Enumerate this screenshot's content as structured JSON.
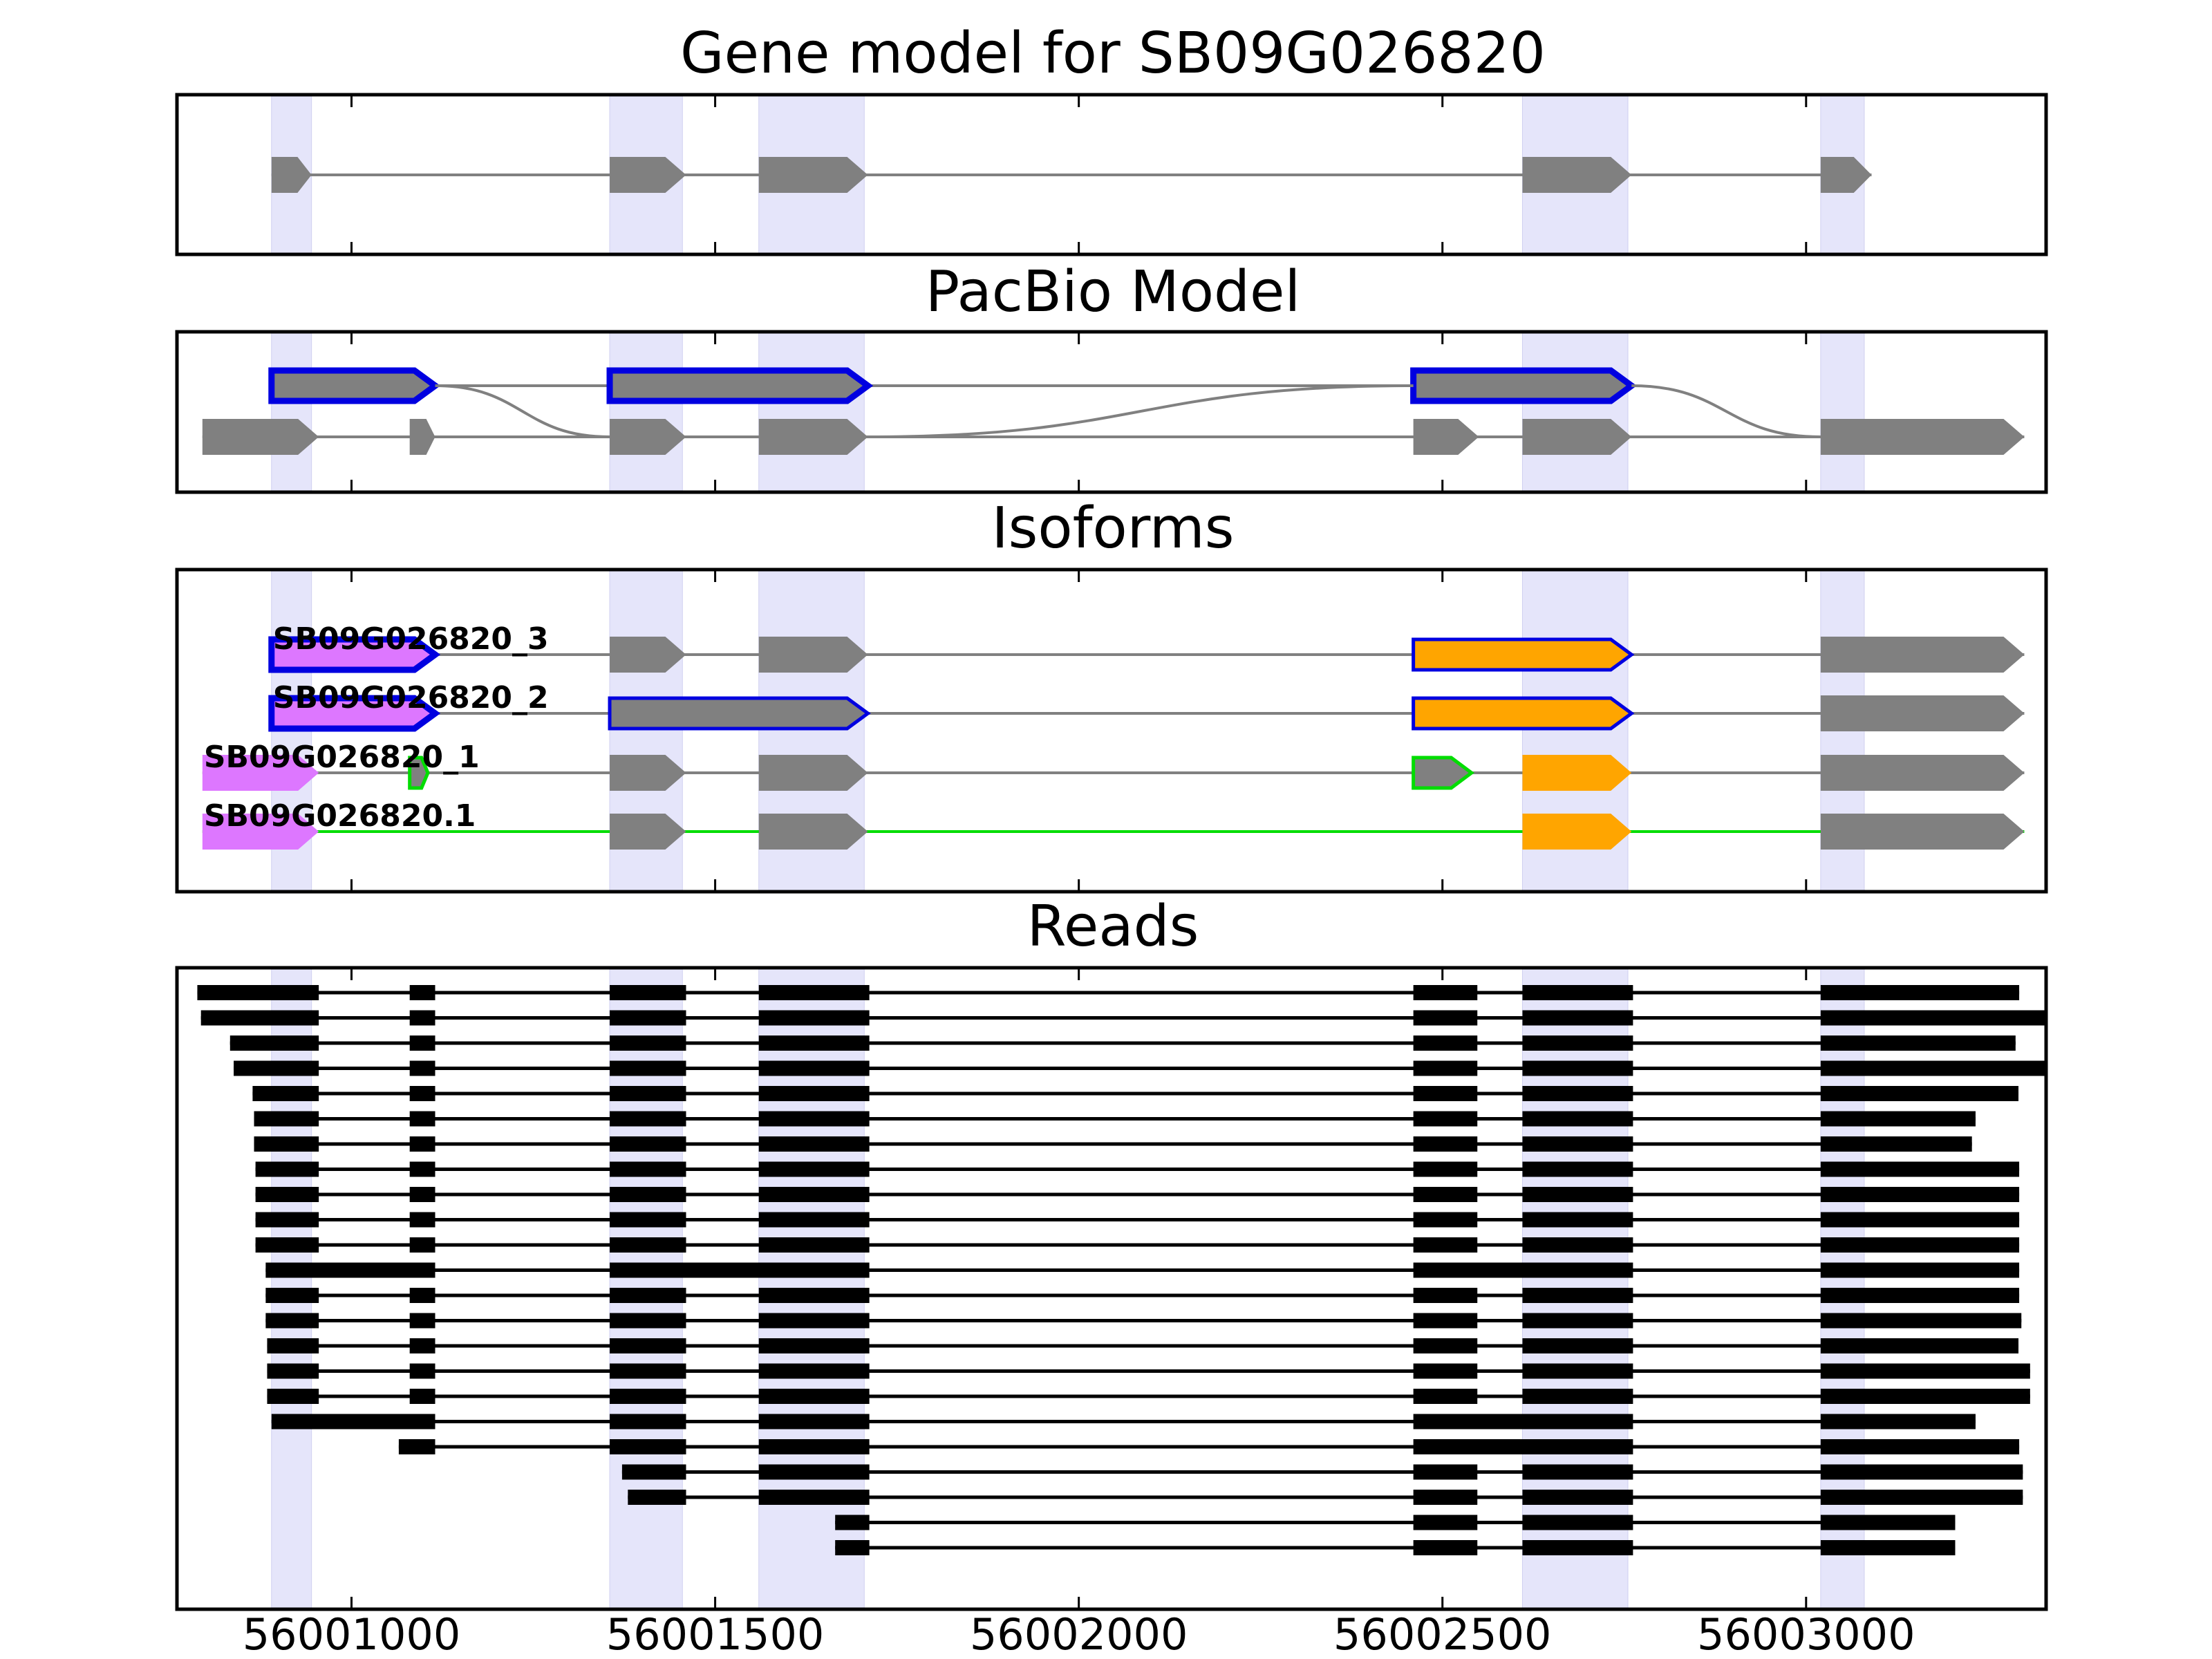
{
  "chart_data": {
    "type": "gene-structure",
    "xlim": [
      56000760,
      56003330
    ],
    "x_ticks": [
      56001000,
      56001500,
      56002000,
      56002500,
      56003000
    ],
    "x_tick_labels": [
      "56001000",
      "56001500",
      "56002000",
      "56002500",
      "56003000"
    ],
    "colors": {
      "exon": "#808080",
      "intron": "#808080",
      "highlight": "#e5e5fa",
      "outline_blue": "#0000e0",
      "outline_green": "#00dd00",
      "fill_purple": "#dd77ff",
      "fill_orange": "#ffa500",
      "read": "#000000"
    },
    "highlight_regions": [
      [
        56000890,
        56000945
      ],
      [
        56001355,
        56001455
      ],
      [
        56001560,
        56001705
      ],
      [
        56002610,
        56002755
      ],
      [
        56003020,
        56003080
      ]
    ],
    "panels": [
      {
        "id": "gene-model",
        "title": "Gene model for SB09G026820",
        "rows": [
          {
            "exons": [
              {
                "start": 56000890,
                "end": 56000945
              },
              {
                "start": 56001355,
                "end": 56001460
              },
              {
                "start": 56001560,
                "end": 56001710
              },
              {
                "start": 56002610,
                "end": 56002760
              },
              {
                "start": 56003020,
                "end": 56003090
              }
            ]
          }
        ]
      },
      {
        "id": "pacbio-model",
        "title": "PacBio Model",
        "rows": [
          {
            "exons": [
              {
                "start": 56000890,
                "end": 56001115,
                "style": "blue"
              },
              {
                "start": 56001355,
                "end": 56001710,
                "style": "blue"
              },
              {
                "start": 56002460,
                "end": 56002760,
                "style": "blue"
              }
            ]
          },
          {
            "exons": [
              {
                "start": 56000795,
                "end": 56000955
              },
              {
                "start": 56001080,
                "end": 56001115
              },
              {
                "start": 56001355,
                "end": 56001460
              },
              {
                "start": 56001560,
                "end": 56001710
              },
              {
                "start": 56002460,
                "end": 56002550
              },
              {
                "start": 56002610,
                "end": 56002760
              },
              {
                "start": 56003020,
                "end": 56003300
              }
            ]
          }
        ],
        "links": [
          {
            "from_row": 0,
            "from_x": 56001115,
            "to_row": 1,
            "to_x": 56001355
          },
          {
            "from_row": 1,
            "from_x": 56001710,
            "to_row": 0,
            "to_x": 56002460
          },
          {
            "from_row": 0,
            "from_x": 56002760,
            "to_row": 1,
            "to_x": 56003020
          }
        ]
      },
      {
        "id": "isoforms",
        "title": "Isoforms",
        "rows": [
          {
            "label": "SB09G026820_3",
            "label_x": 56000890,
            "exons": [
              {
                "start": 56000890,
                "end": 56001115,
                "style": "purple-blue"
              },
              {
                "start": 56001355,
                "end": 56001460
              },
              {
                "start": 56001560,
                "end": 56001710
              },
              {
                "start": 56002460,
                "end": 56002760,
                "style": "orange-blue"
              },
              {
                "start": 56003020,
                "end": 56003300
              }
            ]
          },
          {
            "label": "SB09G026820_2",
            "label_x": 56000890,
            "exons": [
              {
                "start": 56000890,
                "end": 56001115,
                "style": "purple-blue"
              },
              {
                "start": 56001355,
                "end": 56001710,
                "style": "gray-blue"
              },
              {
                "start": 56002460,
                "end": 56002760,
                "style": "orange-blue"
              },
              {
                "start": 56003020,
                "end": 56003300
              }
            ]
          },
          {
            "label": "SB09G026820_1",
            "label_x": 56000795,
            "exons": [
              {
                "start": 56000795,
                "end": 56000955,
                "style": "purple"
              },
              {
                "start": 56001080,
                "end": 56001105,
                "style": "green"
              },
              {
                "start": 56001355,
                "end": 56001460
              },
              {
                "start": 56001560,
                "end": 56001710
              },
              {
                "start": 56002460,
                "end": 56002540,
                "style": "gray-green"
              },
              {
                "start": 56002610,
                "end": 56002760,
                "style": "orange"
              },
              {
                "start": 56003020,
                "end": 56003300
              }
            ]
          },
          {
            "label": "SB09G026820.1",
            "label_x": 56000795,
            "intron_color": "green",
            "exons": [
              {
                "start": 56000795,
                "end": 56000955,
                "style": "purple"
              },
              {
                "start": 56001355,
                "end": 56001460
              },
              {
                "start": 56001560,
                "end": 56001710
              },
              {
                "start": 56002610,
                "end": 56002760,
                "style": "orange"
              },
              {
                "start": 56003020,
                "end": 56003300
              }
            ]
          }
        ]
      },
      {
        "id": "reads",
        "title": "Reads",
        "reads": [
          [
            [
              56000788,
              56000955
            ],
            [
              56001080,
              56001115
            ],
            [
              56001355,
              56001460
            ],
            [
              56001560,
              56001712
            ],
            [
              56002460,
              56002548
            ],
            [
              56002610,
              56002762
            ],
            [
              56003020,
              56003293
            ]
          ],
          [
            [
              56000793,
              56000955
            ],
            [
              56001080,
              56001115
            ],
            [
              56001355,
              56001460
            ],
            [
              56001560,
              56001712
            ],
            [
              56002460,
              56002548
            ],
            [
              56002610,
              56002762
            ],
            [
              56003020,
              56003330
            ]
          ],
          [
            [
              56000833,
              56000955
            ],
            [
              56001080,
              56001115
            ],
            [
              56001355,
              56001460
            ],
            [
              56001560,
              56001712
            ],
            [
              56002460,
              56002548
            ],
            [
              56002610,
              56002762
            ],
            [
              56003020,
              56003288
            ]
          ],
          [
            [
              56000838,
              56000955
            ],
            [
              56001080,
              56001115
            ],
            [
              56001355,
              56001460
            ],
            [
              56001560,
              56001712
            ],
            [
              56002460,
              56002548
            ],
            [
              56002610,
              56002762
            ],
            [
              56003020,
              56003330
            ]
          ],
          [
            [
              56000864,
              56000955
            ],
            [
              56001080,
              56001115
            ],
            [
              56001355,
              56001460
            ],
            [
              56001560,
              56001712
            ],
            [
              56002460,
              56002548
            ],
            [
              56002610,
              56002762
            ],
            [
              56003020,
              56003292
            ]
          ],
          [
            [
              56000866,
              56000955
            ],
            [
              56001080,
              56001115
            ],
            [
              56001355,
              56001460
            ],
            [
              56001560,
              56001712
            ],
            [
              56002460,
              56002548
            ],
            [
              56002610,
              56002762
            ],
            [
              56003020,
              56003233
            ]
          ],
          [
            [
              56000866,
              56000955
            ],
            [
              56001080,
              56001115
            ],
            [
              56001355,
              56001460
            ],
            [
              56001560,
              56001712
            ],
            [
              56002460,
              56002548
            ],
            [
              56002610,
              56002762
            ],
            [
              56003020,
              56003228
            ]
          ],
          [
            [
              56000868,
              56000955
            ],
            [
              56001080,
              56001115
            ],
            [
              56001355,
              56001460
            ],
            [
              56001560,
              56001712
            ],
            [
              56002460,
              56002548
            ],
            [
              56002610,
              56002762
            ],
            [
              56003020,
              56003293
            ]
          ],
          [
            [
              56000868,
              56000955
            ],
            [
              56001080,
              56001115
            ],
            [
              56001355,
              56001460
            ],
            [
              56001560,
              56001712
            ],
            [
              56002460,
              56002548
            ],
            [
              56002610,
              56002762
            ],
            [
              56003020,
              56003293
            ]
          ],
          [
            [
              56000868,
              56000955
            ],
            [
              56001080,
              56001115
            ],
            [
              56001355,
              56001460
            ],
            [
              56001560,
              56001712
            ],
            [
              56002460,
              56002548
            ],
            [
              56002610,
              56002762
            ],
            [
              56003020,
              56003293
            ]
          ],
          [
            [
              56000868,
              56000955
            ],
            [
              56001080,
              56001115
            ],
            [
              56001355,
              56001460
            ],
            [
              56001560,
              56001712
            ],
            [
              56002460,
              56002548
            ],
            [
              56002610,
              56002762
            ],
            [
              56003020,
              56003293
            ]
          ],
          [
            [
              56000882,
              56001115
            ],
            [
              56001355,
              56001712
            ],
            [
              56002460,
              56002762
            ],
            [
              56003020,
              56003293
            ]
          ],
          [
            [
              56000882,
              56000955
            ],
            [
              56001080,
              56001115
            ],
            [
              56001355,
              56001460
            ],
            [
              56001560,
              56001712
            ],
            [
              56002460,
              56002548
            ],
            [
              56002610,
              56002762
            ],
            [
              56003020,
              56003293
            ]
          ],
          [
            [
              56000882,
              56000955
            ],
            [
              56001080,
              56001115
            ],
            [
              56001355,
              56001460
            ],
            [
              56001560,
              56001712
            ],
            [
              56002460,
              56002548
            ],
            [
              56002610,
              56002762
            ],
            [
              56003020,
              56003296
            ]
          ],
          [
            [
              56000884,
              56000955
            ],
            [
              56001080,
              56001115
            ],
            [
              56001355,
              56001460
            ],
            [
              56001560,
              56001712
            ],
            [
              56002460,
              56002548
            ],
            [
              56002610,
              56002762
            ],
            [
              56003020,
              56003292
            ]
          ],
          [
            [
              56000884,
              56000955
            ],
            [
              56001080,
              56001115
            ],
            [
              56001355,
              56001460
            ],
            [
              56001560,
              56001712
            ],
            [
              56002460,
              56002548
            ],
            [
              56002610,
              56002762
            ],
            [
              56003020,
              56003308
            ]
          ],
          [
            [
              56000884,
              56000955
            ],
            [
              56001080,
              56001115
            ],
            [
              56001355,
              56001460
            ],
            [
              56001560,
              56001712
            ],
            [
              56002460,
              56002548
            ],
            [
              56002610,
              56002762
            ],
            [
              56003020,
              56003308
            ]
          ],
          [
            [
              56000890,
              56001115
            ],
            [
              56001355,
              56001460
            ],
            [
              56001560,
              56001712
            ],
            [
              56002460,
              56002762
            ],
            [
              56003020,
              56003233
            ]
          ],
          [
            [
              56001065,
              56001115
            ],
            [
              56001355,
              56001460
            ],
            [
              56001560,
              56001712
            ],
            [
              56002460,
              56002762
            ],
            [
              56003020,
              56003293
            ]
          ],
          [
            [
              56001372,
              56001460
            ],
            [
              56001560,
              56001712
            ],
            [
              56002460,
              56002548
            ],
            [
              56002610,
              56002762
            ],
            [
              56003020,
              56003298
            ]
          ],
          [
            [
              56001380,
              56001460
            ],
            [
              56001560,
              56001712
            ],
            [
              56002460,
              56002548
            ],
            [
              56002610,
              56002762
            ],
            [
              56003020,
              56003298
            ]
          ],
          [
            [
              56001665,
              56001712
            ],
            [
              56002460,
              56002548
            ],
            [
              56002610,
              56002762
            ],
            [
              56003020,
              56003205
            ]
          ],
          [
            [
              56001665,
              56001712
            ],
            [
              56002460,
              56002548
            ],
            [
              56002610,
              56002762
            ],
            [
              56003020,
              56003205
            ]
          ]
        ]
      }
    ]
  }
}
